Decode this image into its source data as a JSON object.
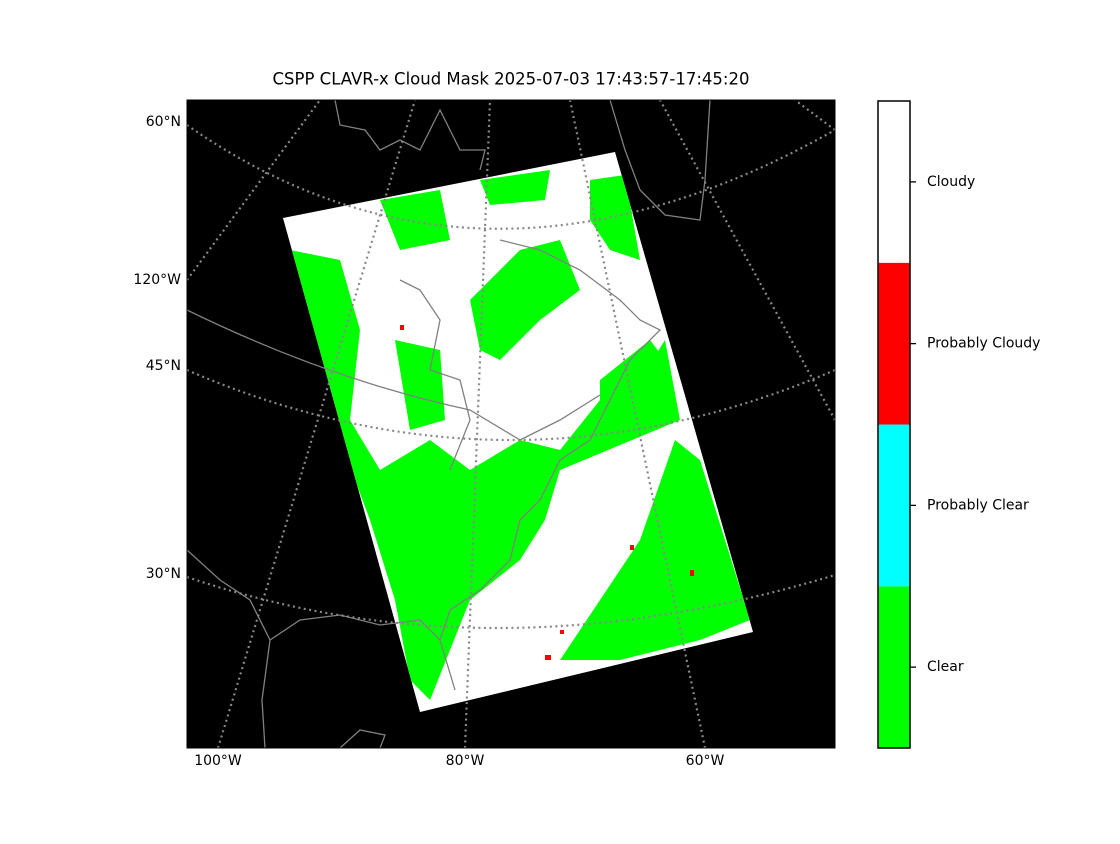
{
  "title": "CSPP CLAVR-x Cloud Mask 2025-07-03 17:43:57-17:45:20",
  "map": {
    "background": "#000000",
    "lat_labels": [
      "60°N",
      "45°N",
      "30°N"
    ],
    "lon_label_left": "120°W",
    "lon_labels_bottom": [
      "100°W",
      "80°W",
      "60°W"
    ]
  },
  "colorbar": {
    "classes": [
      {
        "label": "Clear",
        "color": "#00ff00"
      },
      {
        "label": "Probably Clear",
        "color": "#00ffff"
      },
      {
        "label": "Probably Cloudy",
        "color": "#ff0000"
      },
      {
        "label": "Cloudy",
        "color": "#ffffff"
      }
    ]
  }
}
